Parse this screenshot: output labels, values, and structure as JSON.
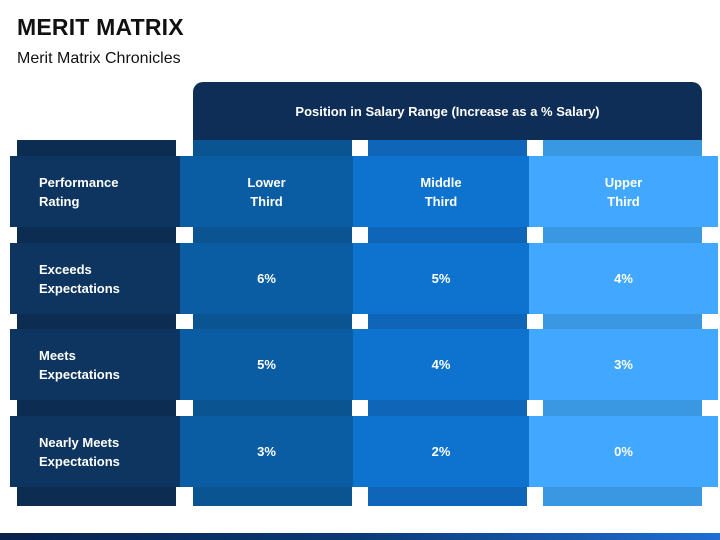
{
  "slide": {
    "title": "MERIT MATRIX",
    "subtitle": "Merit Matrix Chronicles"
  },
  "matrix": {
    "column_group_header": "Position in Salary Range (Increase as a % Salary)",
    "row_header": "Performance\nRating",
    "columns": [
      "Lower\nThird",
      "Middle\nThird",
      "Upper\nThird"
    ],
    "rows": [
      {
        "label": "Exceeds\nExpectations",
        "values": [
          "6%",
          "5%",
          "4%"
        ]
      },
      {
        "label": "Meets\nExpectations",
        "values": [
          "5%",
          "4%",
          "3%"
        ]
      },
      {
        "label": "Nearly Meets\nExpectations",
        "values": [
          "3%",
          "2%",
          "0%"
        ]
      }
    ]
  },
  "colors": {
    "dark_navy": "#0e2e57",
    "lower_third": "#0a5da3",
    "middle_third": "#0d73cf",
    "upper_third": "#42a7ff"
  }
}
